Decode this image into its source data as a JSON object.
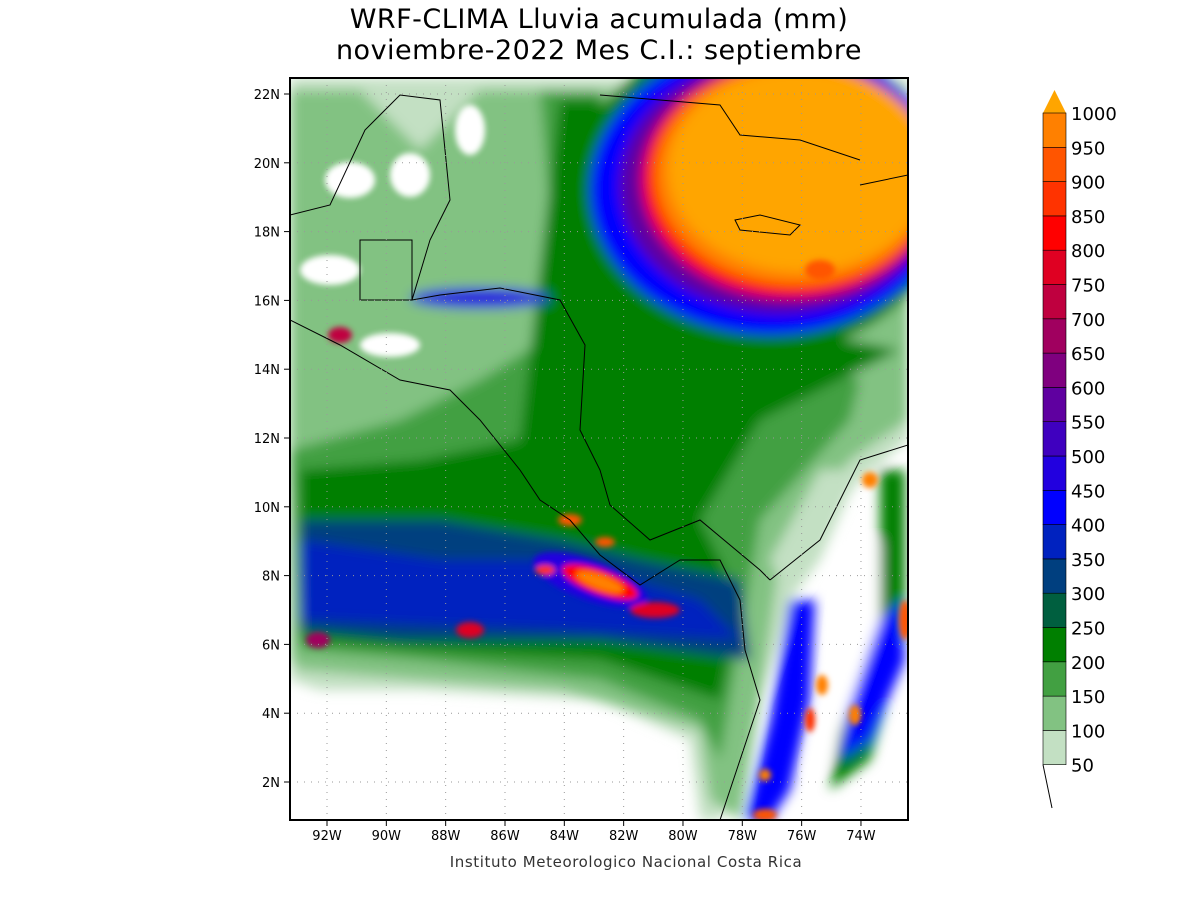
{
  "title": {
    "line1": "WRF-CLIMA Lluvia acumulada (mm)",
    "line2": "noviembre-2022 Mes C.I.: septiembre"
  },
  "credit": "Instituto Meteorologico Nacional Costa Rica",
  "lat_ticks": [
    "22N",
    "20N",
    "18N",
    "16N",
    "14N",
    "12N",
    "10N",
    "8N",
    "6N",
    "4N",
    "2N"
  ],
  "lon_ticks": [
    "92W",
    "90W",
    "88W",
    "86W",
    "84W",
    "82W",
    "80W",
    "78W",
    "76W",
    "74W"
  ],
  "colorbar": {
    "labels": [
      "50",
      "100",
      "150",
      "200",
      "250",
      "300",
      "350",
      "400",
      "450",
      "500",
      "550",
      "600",
      "650",
      "700",
      "750",
      "800",
      "850",
      "900",
      "950",
      "1000"
    ],
    "colors": [
      "#c3e0c3",
      "#82c282",
      "#42a042",
      "#007f00",
      "#005f3f",
      "#003f7f",
      "#0022bf",
      "#0000ff",
      "#2200df",
      "#3f00bf",
      "#5f00a0",
      "#7f007f",
      "#a0005f",
      "#bf003f",
      "#df0022",
      "#ff0000",
      "#ff3300",
      "#ff5500",
      "#ff8000"
    ],
    "over_color": "#ffa500"
  }
}
